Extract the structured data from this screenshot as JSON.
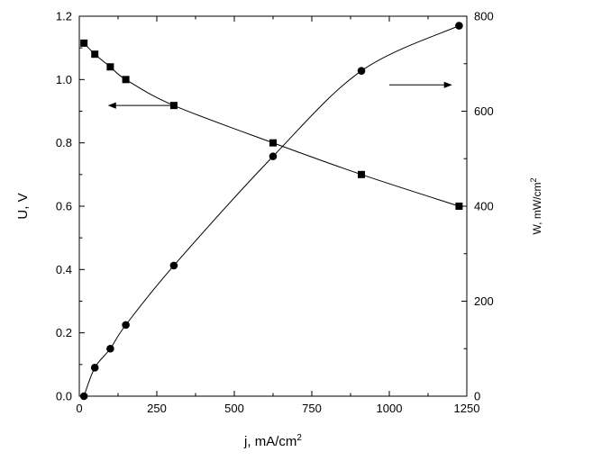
{
  "chart_data": {
    "type": "line",
    "xlabel": {
      "base": "j, mA/cm",
      "sup": "2"
    },
    "ylabel_left": "U, V",
    "ylabel_right": {
      "base": "W, mW/cm",
      "sup": "2"
    },
    "xlim": [
      0,
      1250
    ],
    "ylim_left": [
      0,
      1.2
    ],
    "ylim_right": [
      0,
      800
    ],
    "x_ticks": [
      0,
      250,
      500,
      750,
      1000,
      1250
    ],
    "x_tick_labels": [
      "0",
      "250",
      "500",
      "750",
      "1000",
      "1250"
    ],
    "y_left_ticks": [
      0.0,
      0.2,
      0.4,
      0.6,
      0.8,
      1.0,
      1.2
    ],
    "y_left_tick_labels": [
      "0.0",
      "0.2",
      "0.4",
      "0.6",
      "0.8",
      "1.0",
      "1.2"
    ],
    "y_right_ticks": [
      0,
      200,
      400,
      600,
      800
    ],
    "y_right_tick_labels": [
      "0",
      "200",
      "400",
      "600",
      "800"
    ],
    "grid": false,
    "series": [
      {
        "axis": "left",
        "marker": "square",
        "x": [
          15,
          50,
          100,
          150,
          305,
          625,
          910,
          1225
        ],
        "y": [
          1.115,
          1.08,
          1.04,
          1.0,
          0.918,
          0.8,
          0.7,
          0.6
        ]
      },
      {
        "axis": "right",
        "marker": "circle",
        "x": [
          15,
          50,
          100,
          150,
          305,
          625,
          910,
          1225
        ],
        "y": [
          0,
          60,
          100,
          150,
          275,
          505,
          685,
          780
        ]
      }
    ],
    "annotations": [
      {
        "type": "arrow",
        "points_to": "left",
        "near_series": 0,
        "from": [
          305,
          0.918
        ],
        "to": [
          95,
          0.918
        ]
      },
      {
        "type": "arrow",
        "points_to": "right",
        "near_series": 1,
        "from": [
          1000,
          0.983
        ],
        "to": [
          1200,
          0.983
        ]
      }
    ]
  }
}
